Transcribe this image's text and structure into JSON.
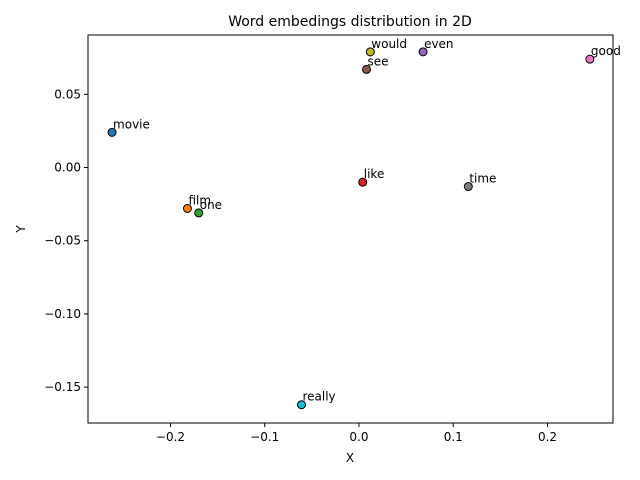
{
  "chart_data": {
    "type": "scatter",
    "title": "Word embedings distribution in 2D",
    "xlabel": "X",
    "ylabel": "Y",
    "xlim": [
      -0.2875,
      0.2695
    ],
    "ylim": [
      -0.1745,
      0.0905
    ],
    "grid": false,
    "xticks": [
      -0.2,
      -0.1,
      0.0,
      0.1,
      0.2
    ],
    "xtick_labels": [
      "−0.2",
      "−0.1",
      "0.0",
      "0.1",
      "0.2"
    ],
    "yticks": [
      -0.15,
      -0.1,
      -0.05,
      0.0,
      0.05
    ],
    "ytick_labels": [
      "−0.15",
      "−0.10",
      "−0.05",
      "0.00",
      "0.05"
    ],
    "points": [
      {
        "label": "movie",
        "x": -0.262,
        "y": 0.024,
        "color": "#1f77b4"
      },
      {
        "label": "film",
        "x": -0.182,
        "y": -0.028,
        "color": "#ff7f0e"
      },
      {
        "label": "one",
        "x": -0.17,
        "y": -0.031,
        "color": "#2ca02c"
      },
      {
        "label": "like",
        "x": 0.004,
        "y": -0.01,
        "color": "#d62728"
      },
      {
        "label": "even",
        "x": 0.068,
        "y": 0.079,
        "color": "#9467bd"
      },
      {
        "label": "see",
        "x": 0.008,
        "y": 0.067,
        "color": "#8c564b"
      },
      {
        "label": "good",
        "x": 0.245,
        "y": 0.074,
        "color": "#e377c2"
      },
      {
        "label": "time",
        "x": 0.116,
        "y": -0.013,
        "color": "#7f7f7f"
      },
      {
        "label": "would",
        "x": 0.012,
        "y": 0.079,
        "color": "#bcbd22"
      },
      {
        "label": "really",
        "x": -0.061,
        "y": -0.162,
        "color": "#17becf"
      }
    ]
  }
}
